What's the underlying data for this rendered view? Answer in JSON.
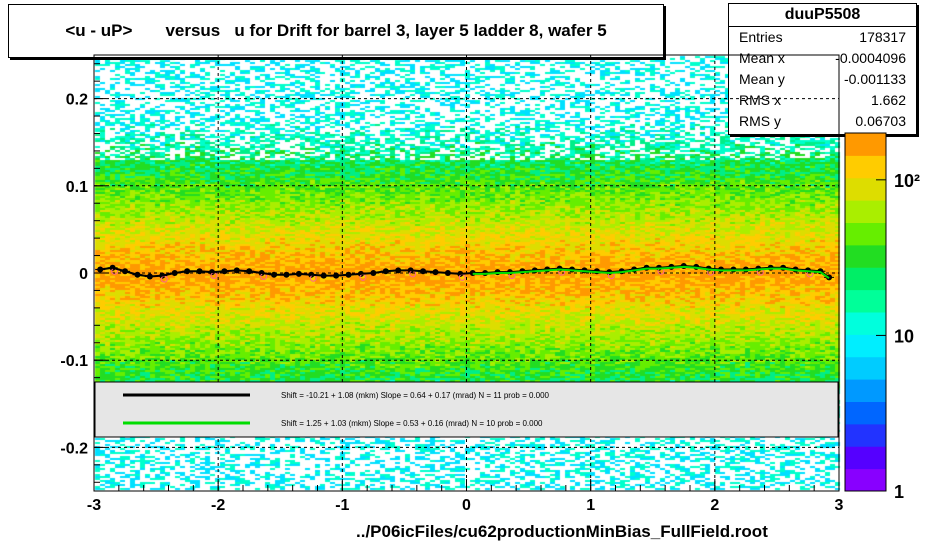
{
  "title": "<u - uP>       versus   u for Drift for barrel 3, layer 5 ladder 8, wafer 5",
  "footer": "../P06icFiles/cu62productionMinBias_FullField.root",
  "stats": {
    "name": "duuP5508",
    "rows": [
      {
        "label": "Entries",
        "value": "178317"
      },
      {
        "label": "Mean x",
        "value": "-0.0004096"
      },
      {
        "label": "Mean y",
        "value": "-0.001133"
      },
      {
        "label": "RMS x",
        "value": "1.662"
      },
      {
        "label": "RMS y",
        "value": "0.06703"
      }
    ]
  },
  "colors": {
    "black_fit": "#000000",
    "green_fit": "#00dd00",
    "legend_bg": "#e6e6e6",
    "profile_marker": "#000000",
    "profile_open": "#ff6688"
  },
  "chart_data": {
    "type": "heatmap",
    "xlim": [
      -3,
      3
    ],
    "ylim": [
      -0.25,
      0.25
    ],
    "x_ticks": [
      -3,
      -2,
      -1,
      0,
      1,
      2,
      3
    ],
    "y_ticks": [
      -0.2,
      -0.1,
      0,
      0.1,
      0.2
    ],
    "x_tick_labels": [
      "-3",
      "-2",
      "-1",
      "0",
      "1",
      "2",
      "3"
    ],
    "y_tick_labels": [
      "-0.2",
      "-0.1",
      "0",
      "0.1",
      "0.2"
    ],
    "grid": true,
    "colorbar": {
      "scale": "log",
      "tick_labels": [
        "1",
        "10",
        "10²"
      ],
      "tick_values": [
        1,
        10,
        100
      ]
    },
    "legend": {
      "placement": "bottom",
      "entries": [
        {
          "color": "#000000",
          "text": "Shift =   -10.21 + 1.08 (mkm) Slope =     0.64 + 0.17 (mrad)  N = 11 prob = 0.000"
        },
        {
          "color": "#00dd00",
          "text": "Shift =     1.25 + 1.03 (mkm) Slope =     0.53 + 0.16 (mrad)  N = 10 prob = 0.000"
        }
      ]
    },
    "profile": {
      "x": [
        -2.95,
        -2.85,
        -2.75,
        -2.65,
        -2.55,
        -2.45,
        -2.35,
        -2.25,
        -2.15,
        -2.05,
        -1.95,
        -1.85,
        -1.75,
        -1.65,
        -1.55,
        -1.45,
        -1.35,
        -1.25,
        -1.15,
        -1.05,
        -0.95,
        -0.85,
        -0.75,
        -0.65,
        -0.55,
        -0.45,
        -0.35,
        -0.25,
        -0.15,
        -0.05,
        0.05,
        0.15,
        0.25,
        0.35,
        0.45,
        0.55,
        0.65,
        0.75,
        0.85,
        0.95,
        1.05,
        1.15,
        1.25,
        1.35,
        1.45,
        1.55,
        1.65,
        1.75,
        1.85,
        1.95,
        2.05,
        2.15,
        2.25,
        2.35,
        2.45,
        2.55,
        2.65,
        2.75,
        2.85,
        2.92
      ],
      "y": [
        0.004,
        0.006,
        0.002,
        -0.002,
        -0.004,
        -0.003,
        0.0,
        0.002,
        0.002,
        0.001,
        0.002,
        0.003,
        0.002,
        0.0,
        -0.002,
        -0.002,
        -0.001,
        -0.002,
        -0.003,
        -0.003,
        -0.002,
        -0.001,
        0.0,
        0.002,
        0.003,
        0.003,
        0.002,
        0.001,
        0.0,
        -0.001,
        0.0,
        0.0,
        0.001,
        0.001,
        0.002,
        0.003,
        0.004,
        0.005,
        0.004,
        0.003,
        0.002,
        0.001,
        0.002,
        0.004,
        0.006,
        0.006,
        0.007,
        0.008,
        0.007,
        0.005,
        0.004,
        0.004,
        0.004,
        0.005,
        0.006,
        0.006,
        0.004,
        0.003,
        0.002,
        -0.005
      ]
    }
  }
}
